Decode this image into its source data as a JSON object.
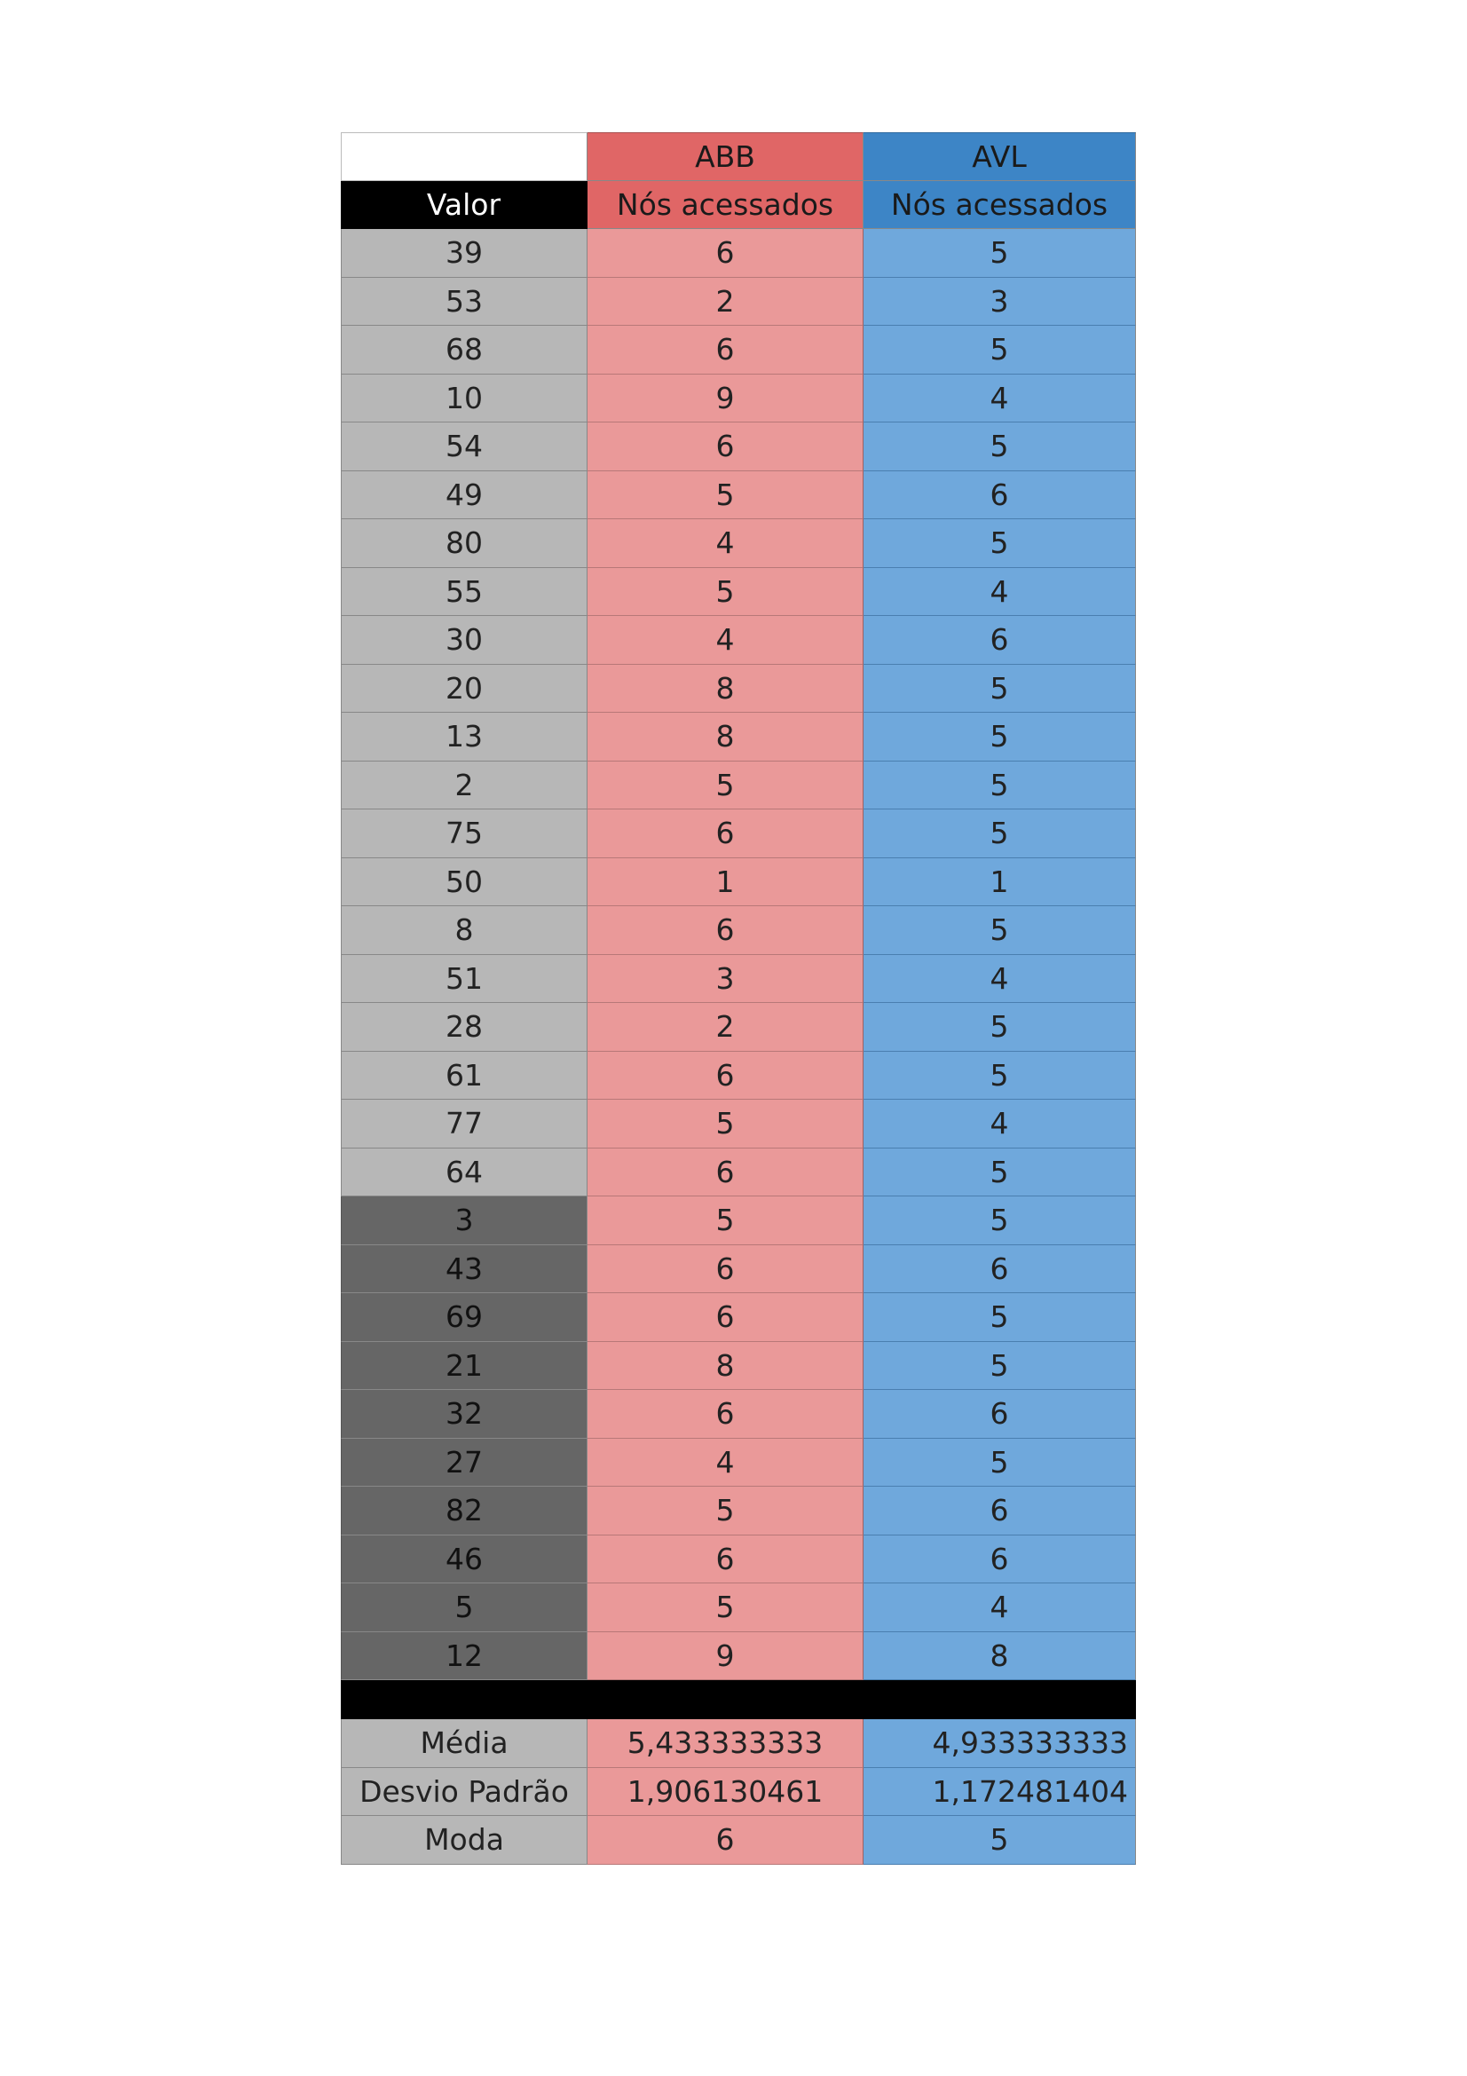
{
  "table": {
    "header_top": {
      "abb": "ABB",
      "avl": "AVL"
    },
    "header_sub": {
      "valor": "Valor",
      "abb": "Nós acessados",
      "avl": "Nós acessados"
    },
    "rows": [
      {
        "valor": "39",
        "abb": "6",
        "avl": "5",
        "shade": "light"
      },
      {
        "valor": "53",
        "abb": "2",
        "avl": "3",
        "shade": "light"
      },
      {
        "valor": "68",
        "abb": "6",
        "avl": "5",
        "shade": "light"
      },
      {
        "valor": "10",
        "abb": "9",
        "avl": "4",
        "shade": "light"
      },
      {
        "valor": "54",
        "abb": "6",
        "avl": "5",
        "shade": "light"
      },
      {
        "valor": "49",
        "abb": "5",
        "avl": "6",
        "shade": "light"
      },
      {
        "valor": "80",
        "abb": "4",
        "avl": "5",
        "shade": "light"
      },
      {
        "valor": "55",
        "abb": "5",
        "avl": "4",
        "shade": "light"
      },
      {
        "valor": "30",
        "abb": "4",
        "avl": "6",
        "shade": "light"
      },
      {
        "valor": "20",
        "abb": "8",
        "avl": "5",
        "shade": "light"
      },
      {
        "valor": "13",
        "abb": "8",
        "avl": "5",
        "shade": "light"
      },
      {
        "valor": "2",
        "abb": "5",
        "avl": "5",
        "shade": "light"
      },
      {
        "valor": "75",
        "abb": "6",
        "avl": "5",
        "shade": "light"
      },
      {
        "valor": "50",
        "abb": "1",
        "avl": "1",
        "shade": "light"
      },
      {
        "valor": "8",
        "abb": "6",
        "avl": "5",
        "shade": "light"
      },
      {
        "valor": "51",
        "abb": "3",
        "avl": "4",
        "shade": "light"
      },
      {
        "valor": "28",
        "abb": "2",
        "avl": "5",
        "shade": "light"
      },
      {
        "valor": "61",
        "abb": "6",
        "avl": "5",
        "shade": "light"
      },
      {
        "valor": "77",
        "abb": "5",
        "avl": "4",
        "shade": "light"
      },
      {
        "valor": "64",
        "abb": "6",
        "avl": "5",
        "shade": "light"
      },
      {
        "valor": "3",
        "abb": "5",
        "avl": "5",
        "shade": "dark"
      },
      {
        "valor": "43",
        "abb": "6",
        "avl": "6",
        "shade": "dark"
      },
      {
        "valor": "69",
        "abb": "6",
        "avl": "5",
        "shade": "dark"
      },
      {
        "valor": "21",
        "abb": "8",
        "avl": "5",
        "shade": "dark"
      },
      {
        "valor": "32",
        "abb": "6",
        "avl": "6",
        "shade": "dark"
      },
      {
        "valor": "27",
        "abb": "4",
        "avl": "5",
        "shade": "dark"
      },
      {
        "valor": "82",
        "abb": "5",
        "avl": "6",
        "shade": "dark"
      },
      {
        "valor": "46",
        "abb": "6",
        "avl": "6",
        "shade": "dark"
      },
      {
        "valor": "5",
        "abb": "5",
        "avl": "4",
        "shade": "dark"
      },
      {
        "valor": "12",
        "abb": "9",
        "avl": "8",
        "shade": "dark"
      }
    ],
    "stats": [
      {
        "label": "Média",
        "abb": "5,433333333",
        "avl": "4,933333333"
      },
      {
        "label": "Desvio Padrão",
        "abb": "1,906130461",
        "avl": "1,172481404"
      },
      {
        "label": "Moda",
        "abb": "6",
        "avl": "5"
      }
    ]
  },
  "colors": {
    "abb_header": "#e06666",
    "abb_cell": "#ea9999",
    "avl_header": "#3d85c6",
    "avl_cell": "#6fa8dc",
    "valor_light": "#b7b7b7",
    "valor_dark": "#666666",
    "separator": "#000000"
  }
}
